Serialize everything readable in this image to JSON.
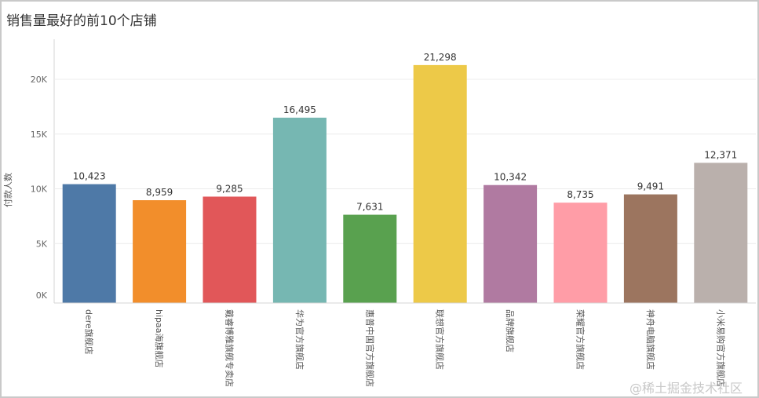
{
  "title": "销售量最好的前10个店铺",
  "watermark": "@稀土掘金技术社区",
  "chart_data": {
    "type": "bar",
    "title": "销售量最好的前10个店铺",
    "xlabel": "",
    "ylabel": "付款人数",
    "ylim": [
      0,
      23000
    ],
    "yticks": [
      0,
      5000,
      10000,
      15000,
      20000
    ],
    "ytick_labels": [
      "0K",
      "5K",
      "10K",
      "15K",
      "20K"
    ],
    "grid": true,
    "categories": [
      "dere旗舰店",
      "hipaa海旗舰店",
      "戴睿博雅旗舰专卖店",
      "华为官方旗舰店",
      "惠普中国官方旗舰店",
      "联想官方旗舰店",
      "品牌旗舰店",
      "荣耀官方旗舰店",
      "神舟电脑旗舰店",
      "小米易购官方旗舰店"
    ],
    "values": [
      10423,
      8959,
      9285,
      16495,
      7631,
      21298,
      10342,
      8735,
      9491,
      12371
    ],
    "value_labels": [
      "10,423",
      "8,959",
      "9,285",
      "16,495",
      "7,631",
      "21,298",
      "10,342",
      "8,735",
      "9,491",
      "12,371"
    ],
    "colors": [
      "#4e79a7",
      "#f28e2b",
      "#e15759",
      "#76b7b2",
      "#59a14f",
      "#edc948",
      "#b07aa1",
      "#ff9da7",
      "#9c755f",
      "#bab0ac"
    ]
  }
}
